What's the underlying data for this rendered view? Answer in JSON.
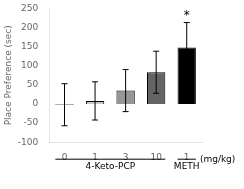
{
  "chart_data": {
    "type": "bar",
    "categories": [
      "0",
      "1",
      "3",
      "10",
      "1"
    ],
    "values": [
      -2,
      8,
      35,
      83,
      148
    ],
    "errors": [
      55,
      50,
      55,
      55,
      65
    ],
    "colors": [
      "#f2f2f2",
      "#c8c8c8",
      "#969696",
      "#646464",
      "#000000"
    ],
    "ylim": [
      -100,
      250
    ],
    "yticks": [
      -100,
      -50,
      0,
      50,
      100,
      150,
      200,
      250
    ],
    "ylabel": "Place Preference (sec)",
    "xlabel": "(mg/kg)",
    "groups": [
      {
        "name": "4-Keto-PCP",
        "count": 4
      },
      {
        "name": "METH",
        "count": 1
      }
    ],
    "annotations": [
      {
        "text": "*",
        "index": 4
      }
    ],
    "grid": false
  }
}
